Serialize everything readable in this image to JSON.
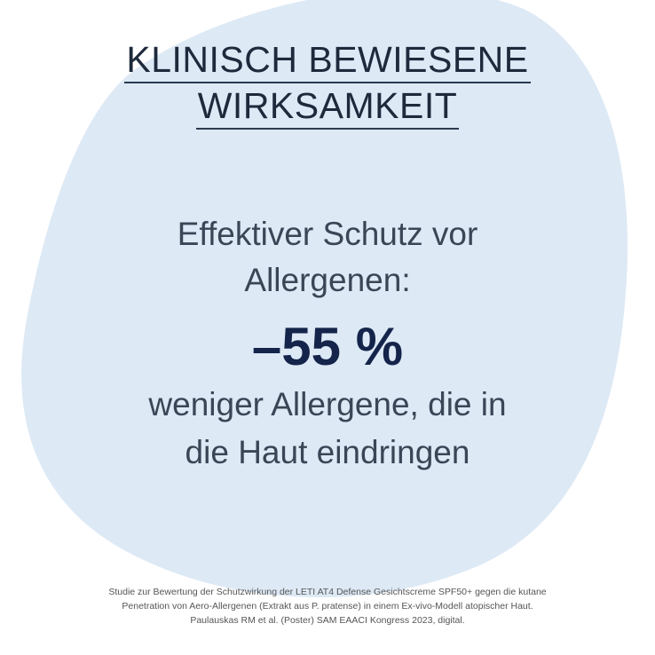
{
  "colors": {
    "blob": "#dde9f5",
    "heading": "#1e2a3c",
    "highlight": "#14244a"
  },
  "heading": {
    "line1": "KLINISCH BEWIESENE",
    "line2": "WIRKSAMKEIT"
  },
  "claim": {
    "line1": "Effektiver Schutz vor",
    "line2": "Allergenen:",
    "value": "–55 %",
    "line3": "weniger Allergene, die in",
    "line4": "die Haut eindringen"
  },
  "footnote": {
    "line1": "Studie zur Bewertung der Schutzwirkung der LETI AT4 Defense Gesichtscreme SPF50+ gegen die kutane",
    "line2": "Penetration von Aero-Allergenen (Extrakt aus P. pratense) in einem Ex-vivo-Modell atopischer Haut.",
    "line3": "Paulauskas RM et al. (Poster) SAM EAACI Kongress 2023, digital."
  }
}
